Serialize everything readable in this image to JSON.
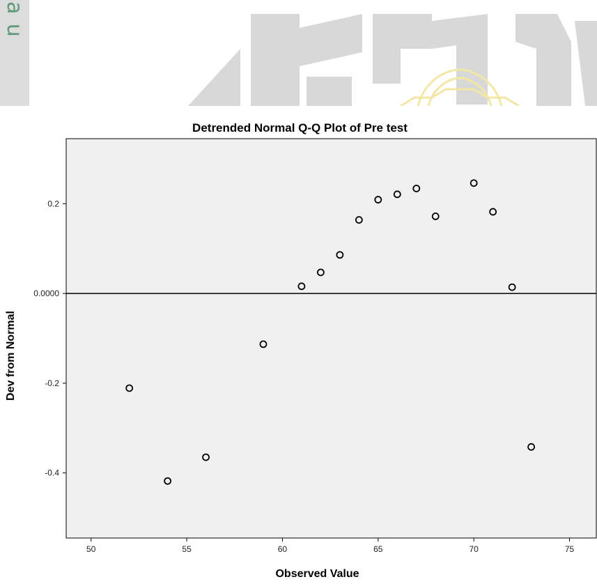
{
  "banner": {
    "watermark_letters": "a u",
    "watermark_color": "#5e9a78",
    "shape_color": "#d8d8d8",
    "ornament_color": "#f3e7a6"
  },
  "chart_data": {
    "type": "scatter",
    "title": "Detrended Normal Q-Q Plot of Pre test",
    "xlabel": "Observed Value",
    "ylabel": "Dev from Normal",
    "xlim": [
      48.7,
      76.4
    ],
    "ylim": [
      -0.545,
      0.345
    ],
    "x_ticks": [
      50,
      55,
      60,
      65,
      70,
      75
    ],
    "x_tick_labels": [
      "50",
      "55",
      "60",
      "65",
      "70",
      "75"
    ],
    "y_ticks": [
      0.2,
      0.0,
      -0.2,
      -0.4
    ],
    "y_tick_labels": [
      "0.2",
      "0.0000",
      "-0.2",
      "-0.4"
    ],
    "reference_line": 0,
    "plot_background": "#f0f0f0",
    "marker_color": "#000000",
    "points": [
      {
        "x": 52,
        "y": -0.211
      },
      {
        "x": 54,
        "y": -0.418
      },
      {
        "x": 56,
        "y": -0.365
      },
      {
        "x": 59,
        "y": -0.113
      },
      {
        "x": 61,
        "y": 0.016
      },
      {
        "x": 62,
        "y": 0.047
      },
      {
        "x": 63,
        "y": 0.086
      },
      {
        "x": 64,
        "y": 0.164
      },
      {
        "x": 65,
        "y": 0.209
      },
      {
        "x": 66,
        "y": 0.221
      },
      {
        "x": 67,
        "y": 0.234
      },
      {
        "x": 68,
        "y": 0.172
      },
      {
        "x": 70,
        "y": 0.246
      },
      {
        "x": 71,
        "y": 0.182
      },
      {
        "x": 72,
        "y": 0.014
      },
      {
        "x": 73,
        "y": -0.342
      }
    ]
  }
}
